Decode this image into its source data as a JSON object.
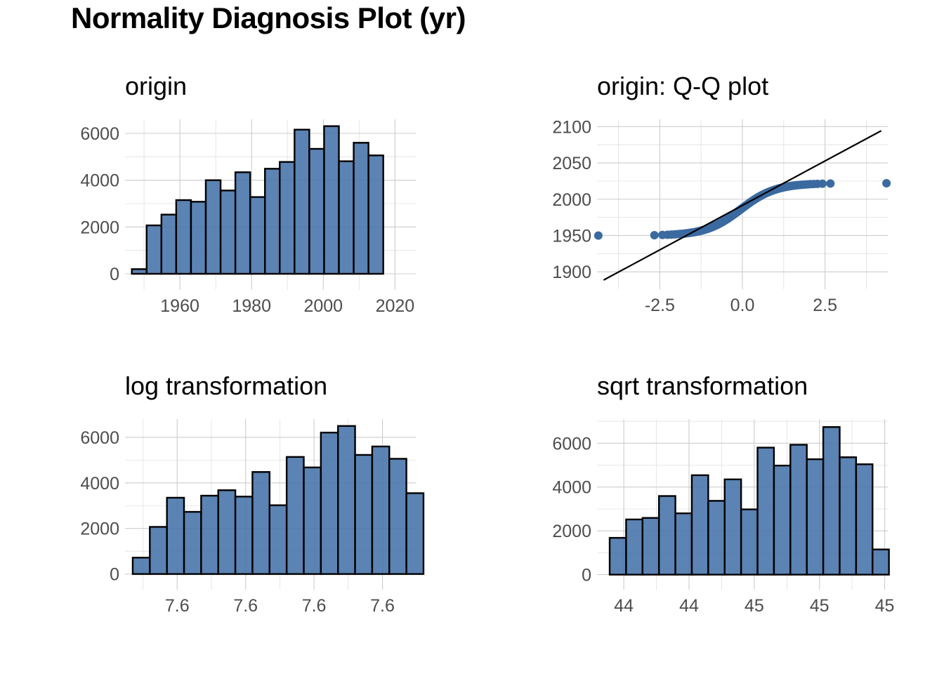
{
  "title": "Normality Diagnosis Plot (yr)",
  "colors": {
    "bar_fill": "#4472a8",
    "bar_edge": "#000000",
    "point": "#3b6aa0",
    "line": "#000000",
    "grid": "#cccccc"
  },
  "chart_data": [
    {
      "id": "origin",
      "type": "bar",
      "title": "origin",
      "xlim": [
        1944.7,
        2025.8
      ],
      "ylim": [
        -690,
        6600
      ],
      "bin_width": 4.125,
      "first_bin_left": 1946.6,
      "values": [
        200,
        2070,
        2530,
        3150,
        3080,
        4000,
        3560,
        4340,
        3280,
        4490,
        4780,
        6160,
        5340,
        6310,
        4810,
        5600,
        5060
      ],
      "x_ticks": [
        1960,
        1980,
        2000,
        2020
      ],
      "x_tick_labels": [
        "1960",
        "1980",
        "2000",
        "2020"
      ],
      "y_ticks": [
        0,
        2000,
        4000,
        6000
      ],
      "y_tick_labels": [
        "0",
        "2000",
        "4000",
        "6000"
      ]
    },
    {
      "id": "qq",
      "type": "scatter",
      "title": "origin: Q-Q plot",
      "xlim": [
        -4.4,
        4.4
      ],
      "ylim": [
        1876,
        2110
      ],
      "x_ticks": [
        -2.5,
        0.0,
        2.5
      ],
      "x_tick_labels": [
        "-2.5",
        "0.0",
        "2.5"
      ],
      "y_ticks": [
        1900,
        1950,
        2000,
        2050,
        2100
      ],
      "y_tick_labels": [
        "1900",
        "1950",
        "2000",
        "2050",
        "2100"
      ],
      "sample_range": [
        1950,
        2022
      ],
      "reference_line": {
        "x0": -4.2,
        "y0": 1888.7,
        "x1": 4.2,
        "y1": 2094.3
      }
    },
    {
      "id": "log",
      "type": "bar",
      "title": "log transformation",
      "xlim": [
        0,
        17
      ],
      "ylim": [
        -690,
        6800
      ],
      "bin_width": 1,
      "first_bin_left": 0.45,
      "values": [
        720,
        2070,
        3350,
        2730,
        3440,
        3680,
        3400,
        4480,
        3020,
        5140,
        4680,
        6210,
        6500,
        5230,
        5600,
        5060,
        3550
      ],
      "x_ticks": [
        3.05,
        7.05,
        11.05,
        15.05
      ],
      "x_tick_labels": [
        "7.6",
        "7.6",
        "7.6",
        "7.6"
      ],
      "y_ticks": [
        0,
        2000,
        4000,
        6000
      ],
      "y_tick_labels": [
        "0",
        "2000",
        "4000",
        "6000"
      ]
    },
    {
      "id": "sqrt",
      "type": "bar",
      "title": "sqrt transformation",
      "xlim": [
        0,
        17.7
      ],
      "ylim": [
        -690,
        7100
      ],
      "bin_width": 1,
      "first_bin_left": 0.77,
      "values": [
        1680,
        2520,
        2590,
        3590,
        2800,
        4540,
        3370,
        4350,
        2980,
        5800,
        4980,
        5930,
        5270,
        6740,
        5360,
        5040,
        1150
      ],
      "x_ticks": [
        1.63,
        5.6,
        9.57,
        13.54,
        17.51
      ],
      "x_tick_labels": [
        "44",
        "44",
        "45",
        "45",
        "45"
      ],
      "y_ticks": [
        0,
        2000,
        4000,
        6000
      ],
      "y_tick_labels": [
        "0",
        "2000",
        "4000",
        "6000"
      ]
    }
  ]
}
